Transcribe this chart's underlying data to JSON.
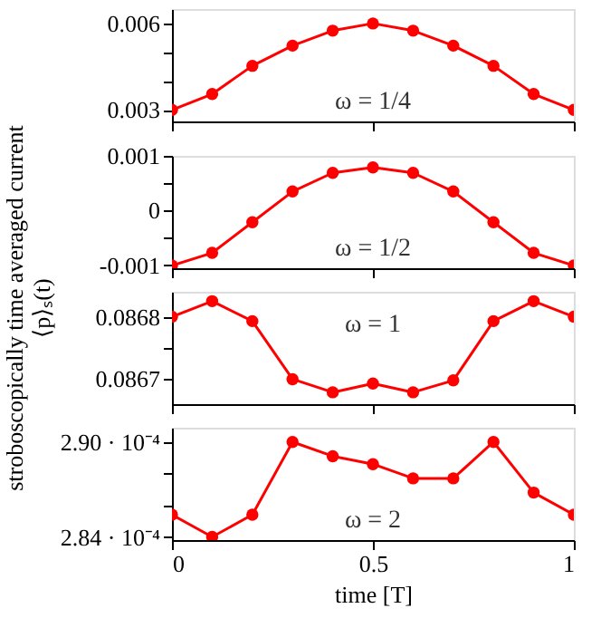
{
  "chart_data": [
    {
      "type": "line",
      "ylabel": "stroboscopically time averaged current\n⟨p⟩ₛ(t)",
      "annotations": [
        "ω = 1/4"
      ],
      "marker": "circle",
      "line_style": "solid",
      "grid": false,
      "tick_labels": "y",
      "x": [
        0,
        0.1,
        0.2,
        0.3,
        0.4,
        0.5,
        0.6,
        0.7,
        0.8,
        0.9,
        1
      ],
      "series": [
        {
          "color": "#ff0000",
          "values": [
            0.003,
            0.00355,
            0.00453,
            0.00523,
            0.00575,
            0.006,
            0.00575,
            0.00523,
            0.00453,
            0.00355,
            0.003
          ]
        }
      ],
      "xlim": [
        0,
        1
      ],
      "xticks": [
        0,
        0.5,
        1
      ],
      "ylim": [
        0.0026,
        0.0065
      ],
      "yticks": [
        0.003,
        {
          "value": 0.004,
          "label": null
        },
        {
          "value": 0.005,
          "label": null
        },
        0.006
      ]
    },
    {
      "type": "line",
      "annotations": [
        "ω = 1/2"
      ],
      "marker": "circle",
      "line_style": "solid",
      "grid": false,
      "tick_labels": "y",
      "x": [
        0,
        0.1,
        0.2,
        0.3,
        0.4,
        0.5,
        0.6,
        0.7,
        0.8,
        0.9,
        1
      ],
      "series": [
        {
          "color": "#ff0000",
          "values": [
            -0.001,
            -0.00077,
            -0.00021,
            0.00035,
            0.00069,
            0.00079,
            0.00069,
            0.00035,
            -0.00021,
            -0.00077,
            -0.001
          ]
        }
      ],
      "xlim": [
        0,
        1
      ],
      "xticks": [
        0,
        0.5,
        1
      ],
      "ylim": [
        -0.00105,
        0.001
      ],
      "yticks": [
        -0.001,
        {
          "value": -0.0005,
          "label": null
        },
        0,
        {
          "value": 0.0005,
          "label": null
        },
        0.001
      ]
    },
    {
      "type": "line",
      "annotations": [
        "ω = 1"
      ],
      "marker": "circle",
      "line_style": "solid",
      "grid": false,
      "tick_labels": "y",
      "x": [
        0,
        0.1,
        0.2,
        0.3,
        0.4,
        0.5,
        0.6,
        0.7,
        0.8,
        0.9,
        1
      ],
      "series": [
        {
          "color": "#ff0000",
          "values": [
            0.0868,
            0.086825,
            0.086793,
            0.0867,
            0.086679,
            0.086693,
            0.086679,
            0.086698,
            0.086793,
            0.086825,
            0.0868
          ]
        }
      ],
      "xlim": [
        0,
        1
      ],
      "xticks": [
        0,
        0.5,
        1
      ],
      "ylim": [
        0.08666,
        0.08684
      ],
      "yticks": [
        0.0867,
        {
          "value": 0.08675,
          "label": null
        },
        0.0868
      ]
    },
    {
      "type": "line",
      "xlabel": "time [T]",
      "annotations": [
        "ω = 2"
      ],
      "marker": "circle",
      "line_style": "solid",
      "grid": false,
      "x": [
        0,
        0.1,
        0.2,
        0.3,
        0.4,
        0.5,
        0.6,
        0.7,
        0.8,
        0.9,
        1
      ],
      "series": [
        {
          "color": "#ff0000",
          "values": [
            0.0002854,
            0.000284,
            0.0002854,
            0.00029,
            0.0002891,
            0.0002886,
            0.0002877,
            0.0002877,
            0.00029,
            0.0002868,
            0.0002854
          ]
        }
      ],
      "xlim": [
        0,
        1
      ],
      "xticks": [
        0,
        0.5,
        1
      ],
      "ylim": [
        0.0002838,
        0.0002909
      ],
      "yticks": [
        {
          "value": 0.000284,
          "label": "2.84 · 10⁻⁴"
        },
        {
          "value": 0.000286,
          "label": null
        },
        {
          "value": 0.000288,
          "label": null
        },
        {
          "value": 0.00029,
          "label": "2.90 · 10⁻⁴"
        }
      ]
    }
  ]
}
